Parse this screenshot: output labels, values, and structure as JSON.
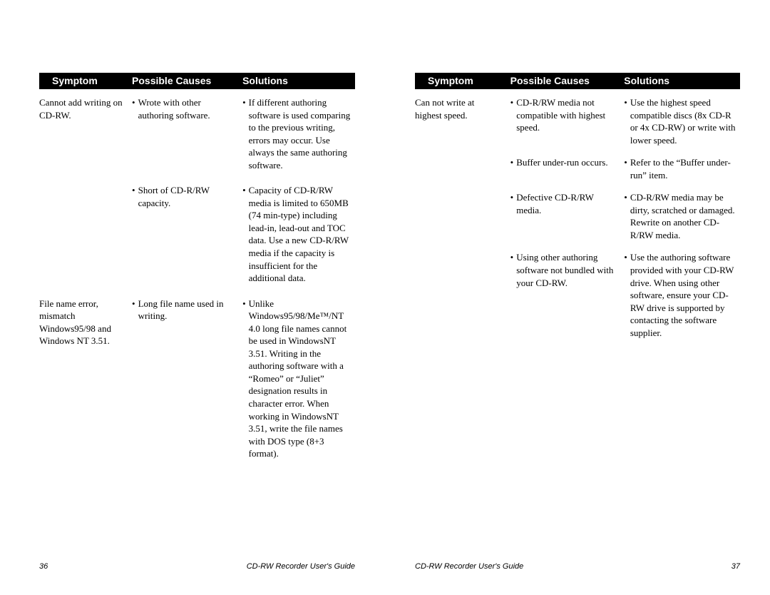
{
  "headers": {
    "symptom": "Symptom",
    "causes": "Possible Causes",
    "solutions": "Solutions"
  },
  "left": {
    "rows": [
      {
        "symptom": "Cannot add writing on CD-RW.",
        "cause": "Wrote with other authoring software.",
        "solution": "If different authoring software is used comparing to the previous writing, errors may occur.  Use always the same authoring software."
      },
      {
        "symptom": "",
        "cause": "Short of CD-R/RW capacity.",
        "solution": "Capacity of CD-R/RW media is limited to 650MB (74 min-type) including lead-in, lead-out and TOC data.  Use a new CD-R/RW media if the capacity is insufficient for the additional data."
      },
      {
        "symptom": "File name error, mismatch Windows95/98 and Windows NT 3.51.",
        "cause": "Long file name used in writing.",
        "solution": "Unlike Windows95/98/Me™/NT 4.0 long file names cannot be used in WindowsNT 3.51.  Writing in the authoring software with a “Romeo” or “Juliet” designation results in character error.  When working in WindowsNT 3.51, write the file names with DOS type (8+3 format)."
      }
    ],
    "footer_guide": "CD-RW Recorder User's Guide",
    "page_number": "36"
  },
  "right": {
    "rows": [
      {
        "symptom": "Can not write at highest speed.",
        "cause": "CD-R/RW media not compatible with highest speed.",
        "solution": "Use the highest speed compatible discs (8x CD-R or 4x CD-RW) or write with lower speed."
      },
      {
        "symptom": "",
        "cause": "Buffer under-run occurs.",
        "solution": "Refer to the “Buffer under-run” item."
      },
      {
        "symptom": "",
        "cause": "Defective CD-R/RW media.",
        "solution": "CD-R/RW media may be dirty, scratched or damaged.  Rewrite on another CD-R/RW media."
      },
      {
        "symptom": "",
        "cause": "Using other authoring software not bundled with your CD-RW.",
        "solution": "Use the authoring software provided with your CD-RW drive.  When using other software, ensure your CD-RW drive is supported by contacting the software supplier."
      }
    ],
    "footer_guide": "CD-RW Recorder User's Guide",
    "page_number": "37"
  }
}
